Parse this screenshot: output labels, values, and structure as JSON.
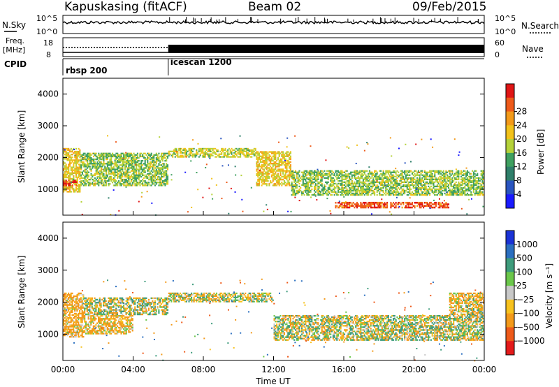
{
  "header": {
    "station": "Kapuskasing (fitACF)",
    "beam": "Beam 02",
    "date": "09/Feb/2015"
  },
  "noise_panel": {
    "left_label": "N.Sky",
    "right_label": "N.Search",
    "left_ticks": [
      "10^5",
      "10^0"
    ],
    "right_ticks": [
      "10^5",
      "10^0"
    ]
  },
  "freq_panel": {
    "left_label_1": "Freq.",
    "left_label_2": "[MHz]",
    "right_label": "Nave",
    "left_ticks": [
      "18",
      "8"
    ],
    "right_ticks": [
      "60",
      "0"
    ]
  },
  "cpid": {
    "label": "CPID",
    "programs": [
      {
        "name": "rbsp 200",
        "start_hour": 0
      },
      {
        "name": "icescan 1200",
        "start_hour": 6
      }
    ]
  },
  "x_axis": {
    "label": "Time UT",
    "ticks": [
      "00:00",
      "04:00",
      "08:00",
      "12:00",
      "16:00",
      "20:00",
      "00:00"
    ],
    "range_hours": [
      0,
      24
    ]
  },
  "power_panel": {
    "ylabel": "Slant Range [km]",
    "yticks": [
      "1000",
      "2000",
      "3000",
      "4000"
    ],
    "cbar_label": "Power [dB]",
    "cbar_ticks": [
      "4",
      "8",
      "12",
      "16",
      "20",
      "24",
      "28"
    ],
    "colors": [
      "#1a1aff",
      "#2a55c0",
      "#2f7f6a",
      "#3fa060",
      "#b5d23a",
      "#f2c21a",
      "#f39a1a",
      "#ee5a1a",
      "#e01515"
    ]
  },
  "velocity_panel": {
    "ylabel": "Slant Range [km]",
    "yticks": [
      "1000",
      "2000",
      "3000",
      "4000"
    ],
    "cbar_label": "Velocity [m s⁻¹]",
    "cbar_ticks": [
      "1000",
      "500",
      "100",
      "25",
      "−25",
      "−100",
      "−500",
      "−1000"
    ],
    "colors": [
      "#1b33d6",
      "#2b6fc0",
      "#3e9c7c",
      "#6bc74a",
      "#c8c8c8",
      "#f7c21e",
      "#f39a1a",
      "#ee5a1a",
      "#e41a1a"
    ]
  },
  "chart_data": [
    {
      "type": "heatmap",
      "title": "Power [dB]",
      "xlabel": "Time UT",
      "ylabel": "Slant Range [km]",
      "xlim": [
        0,
        24
      ],
      "ylim": [
        180,
        4500
      ],
      "zlim": [
        0,
        30
      ],
      "regions": [
        {
          "t0": 0.0,
          "t1": 1.0,
          "r0": 900,
          "r1": 2300,
          "value": 18
        },
        {
          "t0": 0.0,
          "t1": 0.8,
          "r0": 1100,
          "r1": 1300,
          "value": 28
        },
        {
          "t0": 1.0,
          "t1": 6.0,
          "r0": 1100,
          "r1": 2150,
          "value": 14
        },
        {
          "t0": 6.0,
          "t1": 11.0,
          "r0": 2000,
          "r1": 2300,
          "value": 16
        },
        {
          "t0": 11.0,
          "t1": 13.0,
          "r0": 1100,
          "r1": 2200,
          "value": 18
        },
        {
          "t0": 13.0,
          "t1": 24.0,
          "r0": 800,
          "r1": 1600,
          "value": 14
        },
        {
          "t0": 15.5,
          "t1": 22.0,
          "r0": 400,
          "r1": 600,
          "value": 26
        }
      ]
    },
    {
      "type": "heatmap",
      "title": "Velocity [m s⁻¹]",
      "xlabel": "Time UT",
      "ylabel": "Slant Range [km]",
      "xlim": [
        0,
        24
      ],
      "ylim": [
        180,
        4500
      ],
      "zlim": [
        -1000,
        1000
      ],
      "regions": [
        {
          "t0": 0.0,
          "t1": 1.2,
          "r0": 900,
          "r1": 2300,
          "value": -200
        },
        {
          "t0": 1.2,
          "t1": 4.0,
          "r0": 1000,
          "r1": 1600,
          "value": -150
        },
        {
          "t0": 1.2,
          "t1": 6.0,
          "r0": 1600,
          "r1": 2150,
          "value": 0
        },
        {
          "t0": 6.0,
          "t1": 12.0,
          "r0": 2000,
          "r1": 2300,
          "value": 0
        },
        {
          "t0": 12.0,
          "t1": 24.0,
          "r0": 800,
          "r1": 1600,
          "value": 0
        },
        {
          "t0": 22.0,
          "t1": 24.0,
          "r0": 1600,
          "r1": 2300,
          "value": -80
        }
      ]
    }
  ]
}
